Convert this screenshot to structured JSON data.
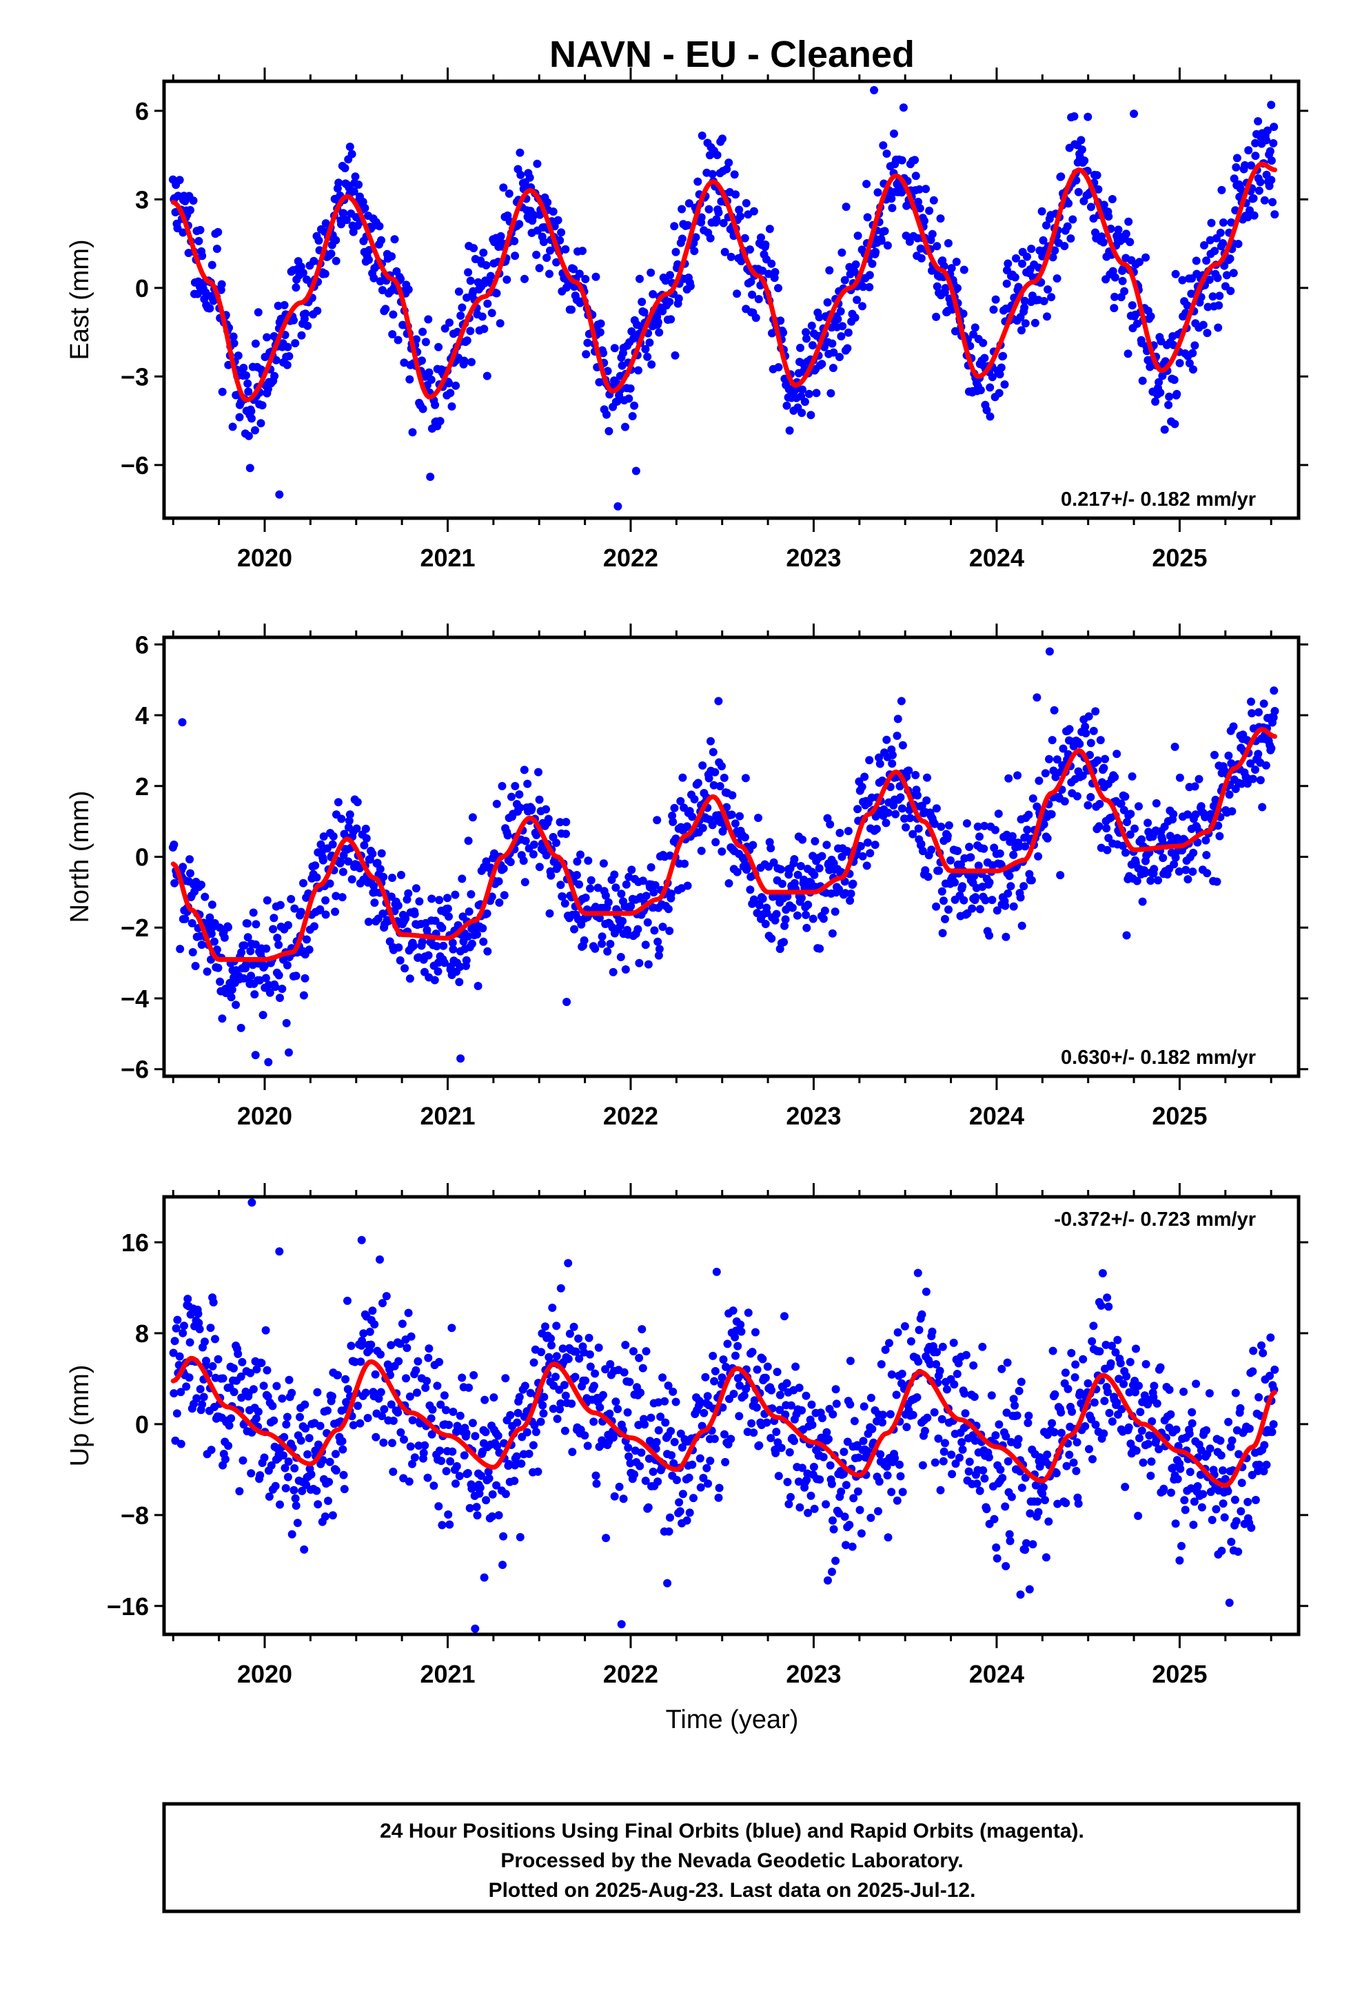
{
  "chart_data": {
    "type": "scatter",
    "title": "NAVN  - EU - Cleaned",
    "xlabel": "Time (year)",
    "x_ticks": [
      "2020",
      "2021",
      "2022",
      "2023",
      "2024",
      "2025"
    ],
    "xlim": [
      2019.45,
      2025.65
    ],
    "colors": {
      "points": "#0000ff",
      "fit": "#ff0000",
      "frame": "#000000"
    },
    "panels": [
      {
        "id": "east",
        "ylabel": "East (mm)",
        "ylim": [
          -7.8,
          7.0
        ],
        "y_ticks": [
          -6,
          -3,
          0,
          3,
          6
        ],
        "rate_label": "0.217+/- 0.182 mm/yr",
        "rate_position": "bottom-right",
        "fit": {
          "x": [
            2019.5,
            2019.7,
            2019.9,
            2020.2,
            2020.45,
            2020.7,
            2020.9,
            2021.2,
            2021.45,
            2021.7,
            2021.9,
            2022.2,
            2022.45,
            2022.7,
            2022.9,
            2023.2,
            2023.45,
            2023.7,
            2023.9,
            2024.2,
            2024.45,
            2024.7,
            2024.9,
            2025.2,
            2025.45,
            2025.52
          ],
          "y": [
            2.9,
            0.2,
            -3.8,
            -0.5,
            3.1,
            0.3,
            -3.7,
            -0.3,
            3.3,
            0.2,
            -3.5,
            -0.2,
            3.6,
            0.4,
            -3.3,
            0.0,
            3.8,
            0.6,
            -3.0,
            0.2,
            4.0,
            0.8,
            -2.8,
            0.8,
            4.2,
            4.0
          ]
        },
        "scatter": {
          "mean": "fit",
          "spread_mm": 0.9,
          "outliers": [
            [
              2019.92,
              -6.1
            ],
            [
              2020.08,
              -7.0
            ],
            [
              2021.93,
              -7.4
            ],
            [
              2022.03,
              -6.2
            ],
            [
              2023.33,
              6.7
            ],
            [
              2024.75,
              5.9
            ],
            [
              2025.5,
              6.2
            ]
          ]
        }
      },
      {
        "id": "north",
        "ylabel": "North (mm)",
        "ylim": [
          -6.2,
          6.2
        ],
        "y_ticks": [
          -6,
          -4,
          -2,
          0,
          2,
          4,
          6
        ],
        "rate_label": "0.630+/- 0.182 mm/yr",
        "rate_position": "bottom-right",
        "fit": {
          "x": [
            2019.5,
            2019.6,
            2019.75,
            2020.0,
            2020.15,
            2020.3,
            2020.45,
            2020.6,
            2020.75,
            2021.0,
            2021.15,
            2021.3,
            2021.45,
            2021.6,
            2021.75,
            2022.0,
            2022.15,
            2022.3,
            2022.45,
            2022.6,
            2022.75,
            2023.0,
            2023.15,
            2023.3,
            2023.45,
            2023.6,
            2023.75,
            2024.0,
            2024.15,
            2024.3,
            2024.45,
            2024.6,
            2024.75,
            2025.0,
            2025.15,
            2025.3,
            2025.45,
            2025.52
          ],
          "y": [
            -0.2,
            -1.5,
            -2.9,
            -2.9,
            -2.7,
            -0.8,
            0.5,
            -0.6,
            -2.2,
            -2.3,
            -1.8,
            0.0,
            1.1,
            0.0,
            -1.6,
            -1.6,
            -1.2,
            0.6,
            1.7,
            0.3,
            -1.0,
            -1.0,
            -0.6,
            1.2,
            2.4,
            1.0,
            -0.4,
            -0.4,
            -0.1,
            1.8,
            3.0,
            1.6,
            0.2,
            0.3,
            0.7,
            2.5,
            3.6,
            3.4
          ]
        },
        "scatter": {
          "mean": "fit",
          "spread_mm": 0.75,
          "outliers": [
            [
              2019.55,
              3.8
            ],
            [
              2019.95,
              -5.6
            ],
            [
              2020.02,
              -5.8
            ],
            [
              2021.07,
              -5.7
            ],
            [
              2021.65,
              -4.1
            ],
            [
              2023.95,
              -2.1
            ],
            [
              2024.29,
              5.8
            ],
            [
              2024.22,
              4.5
            ],
            [
              2022.48,
              4.4
            ],
            [
              2023.48,
              4.4
            ]
          ]
        }
      },
      {
        "id": "up",
        "ylabel": "Up (mm)",
        "ylim": [
          -18.5,
          20
        ],
        "y_ticks": [
          -16,
          -8,
          0,
          8,
          16
        ],
        "rate_label": "-0.372+/- 0.723 mm/yr",
        "rate_position": "top-right",
        "fit": {
          "x": [
            2019.5,
            2019.6,
            2019.8,
            2020.0,
            2020.25,
            2020.4,
            2020.58,
            2020.8,
            2021.0,
            2021.25,
            2021.4,
            2021.58,
            2021.8,
            2022.0,
            2022.25,
            2022.4,
            2022.58,
            2022.8,
            2023.0,
            2023.25,
            2023.4,
            2023.58,
            2023.8,
            2024.0,
            2024.25,
            2024.4,
            2024.58,
            2024.8,
            2025.0,
            2025.25,
            2025.4,
            2025.52
          ],
          "y": [
            3.8,
            5.8,
            1.5,
            -0.8,
            -3.5,
            -0.5,
            5.5,
            1.0,
            -1.0,
            -3.8,
            -0.4,
            5.3,
            1.0,
            -1.2,
            -4.0,
            -0.6,
            4.9,
            0.6,
            -1.6,
            -4.5,
            -0.8,
            4.6,
            0.4,
            -2.0,
            -5.0,
            -1.0,
            4.3,
            0.0,
            -2.4,
            -5.4,
            -2.0,
            2.8
          ]
        },
        "scatter": {
          "mean": "fit",
          "spread_mm": 3.6,
          "outliers": [
            [
              2019.93,
              19.5
            ],
            [
              2020.08,
              15.2
            ],
            [
              2021.15,
              -18.0
            ],
            [
              2021.95,
              -17.6
            ],
            [
              2021.2,
              -13.5
            ],
            [
              2022.2,
              -14.0
            ],
            [
              2023.1,
              -13.0
            ],
            [
              2024.13,
              -15.0
            ],
            [
              2024.05,
              -12.5
            ],
            [
              2025.0,
              -12.0
            ],
            [
              2020.53,
              16.2
            ],
            [
              2022.47,
              13.4
            ],
            [
              2023.57,
              13.3
            ]
          ]
        }
      }
    ]
  },
  "footer": {
    "line1": "24 Hour Positions Using Final Orbits (blue) and Rapid Orbits (magenta).",
    "line2": "Processed by the Nevada Geodetic Laboratory.",
    "line3": "Plotted on 2025-Aug-23. Last data on 2025-Jul-12."
  }
}
